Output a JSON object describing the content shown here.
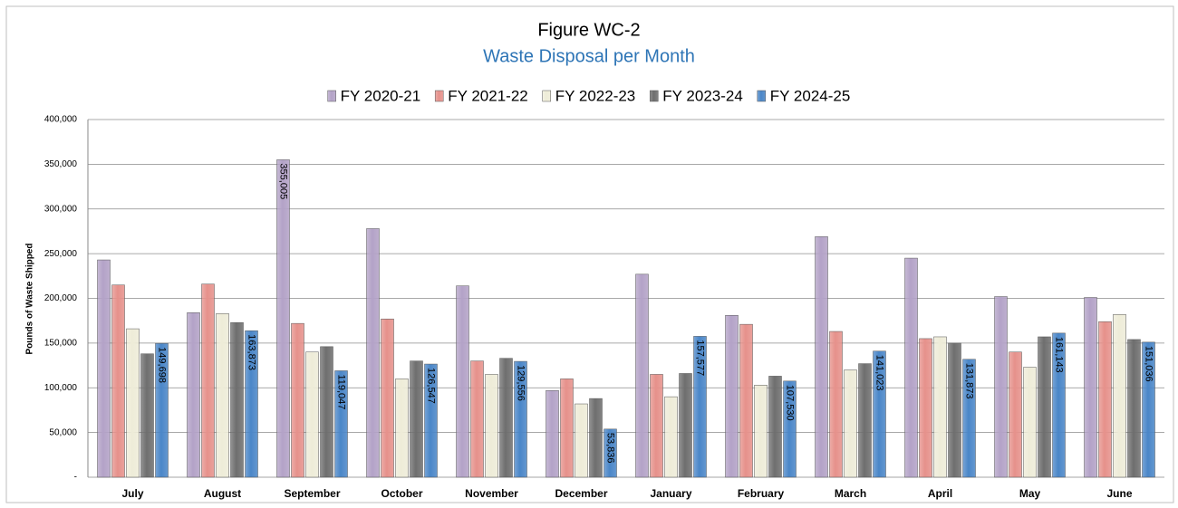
{
  "chart_data": {
    "type": "bar",
    "title": "Figure WC-2",
    "subtitle": "Waste Disposal per Month",
    "y_label": "Pounds of Waste Shipped",
    "categories": [
      "July",
      "August",
      "September",
      "October",
      "November",
      "December",
      "January",
      "February",
      "March",
      "April",
      "May",
      "June"
    ],
    "series": [
      {
        "name": "FY 2020-21",
        "color": "#b3a2c7",
        "values": [
          243000,
          184000,
          355005,
          278000,
          214000,
          97000,
          227000,
          181000,
          269000,
          245000,
          202000,
          201000
        ],
        "value_labels": [
          null,
          null,
          "355,005",
          null,
          null,
          null,
          null,
          null,
          null,
          null,
          null,
          null
        ]
      },
      {
        "name": "FY 2021-22",
        "color": "#e6918b",
        "values": [
          215000,
          216000,
          172000,
          177000,
          130000,
          110000,
          115000,
          171000,
          163000,
          155000,
          140000,
          174000
        ]
      },
      {
        "name": "FY 2022-23",
        "color": "#eeecd8",
        "values": [
          166000,
          183000,
          140000,
          110000,
          115000,
          82000,
          90000,
          103000,
          120000,
          157000,
          123000,
          182000
        ]
      },
      {
        "name": "FY 2023-24",
        "color": "#6e6e6e",
        "values": [
          138000,
          173000,
          146000,
          130000,
          133000,
          88000,
          116000,
          113000,
          127000,
          150000,
          157000,
          154000
        ]
      },
      {
        "name": "FY 2024-25",
        "color": "#4a86c8",
        "values": [
          149698,
          163873,
          119047,
          126547,
          129556,
          53836,
          157577,
          107530,
          141023,
          131873,
          161143,
          151036
        ],
        "value_labels": [
          "149,698",
          "163,873",
          "119,047",
          "126,547",
          "129,556",
          "53,836",
          "157,577",
          "107,530",
          "141,023",
          "131,873",
          "161,143",
          "151,036"
        ]
      }
    ],
    "ylim": [
      0,
      400000
    ],
    "yticks": [
      {
        "value": 0,
        "label": "-"
      },
      {
        "value": 50000,
        "label": "50,000"
      },
      {
        "value": 100000,
        "label": "100,000"
      },
      {
        "value": 150000,
        "label": "150,000"
      },
      {
        "value": 200000,
        "label": "200,000"
      },
      {
        "value": 250000,
        "label": "250,000"
      },
      {
        "value": 300000,
        "label": "300,000"
      },
      {
        "value": 350000,
        "label": "350,000"
      },
      {
        "value": 400000,
        "label": "400,000"
      }
    ],
    "grid": true,
    "legend": "top"
  }
}
